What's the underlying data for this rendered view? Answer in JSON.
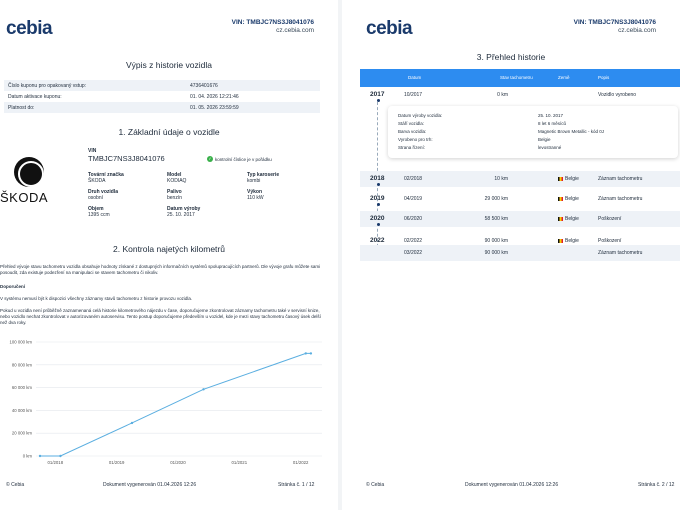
{
  "header": {
    "logo": "cebia",
    "vin_label": "VIN: TMBJC7NS3J8041076",
    "url": "cz.cebia.com"
  },
  "page1": {
    "title": "Výpis z historie vozidla",
    "coupon": [
      {
        "label": "Číslo kuponu pro opakovaný vstup:",
        "value": "4736401676"
      },
      {
        "label": "Datum aktivace kuponu:",
        "value": "01. 04. 2026 12:21:46"
      },
      {
        "label": "Platnost do:",
        "value": "01. 05. 2026 23:59:59"
      }
    ],
    "section1_title": "1. Základní údaje o vozidle",
    "brand_wordmark": "ŠKODA",
    "vin_heading": "VIN",
    "vin_value": "TMBJC7NS3J8041076",
    "vin_check": "kontrolní číslice je v pořádku",
    "vehicle": [
      {
        "label": "Tovární značka",
        "value": "ŠKODA"
      },
      {
        "label": "Model",
        "value": "KODIAQ"
      },
      {
        "label": "Typ karoserie",
        "value": "kombi"
      },
      {
        "label": "Druh vozidla",
        "value": "osobní"
      },
      {
        "label": "Palivo",
        "value": "benzín"
      },
      {
        "label": "Výkon",
        "value": "110 kW"
      },
      {
        "label": "Objem",
        "value": "1395 ccm"
      },
      {
        "label": "Datum výroby",
        "value": "25. 10. 2017"
      }
    ],
    "section2_title": "2. Kontrola najetých kilometrů",
    "intro_text": "Přehled vývoje stavu tachometru vozidla obsahuje hodnoty získané z dostupných informačních systémů spolupracujících partnerů. Dle vývoje grafu můžete sami posoudit, zda existuje podezření na manipulaci se stavem tachometru či nikoliv.",
    "recommendation_heading": "Doporučení",
    "recommendation_1": "V systému nemusí být k dispozici všechny záznamy stavů tachometru z historie provozu vozidla.",
    "recommendation_2": "Pokud u vozidla není průběžně zaznamenaná celá historie kilometrového nájezdu v čase, doporučujeme zkontrolovat záznamy tachometru také v servisní knize, nebo vozidlo nechat zkontrolovat v autorizovaném autoservisu. Tento postup doporučujeme především u vozidel, kde je mezi stavy tachometru časový úsek delší než dva roky."
  },
  "chart_data": {
    "type": "line",
    "title": "",
    "xlabel": "",
    "ylabel": "",
    "x_ticks": [
      "01/2018",
      "01/2019",
      "01/2020",
      "01/2021",
      "01/2022"
    ],
    "y_ticks": [
      "0 km",
      "20 000 km",
      "40 000 km",
      "60 000 km",
      "80 000 km",
      "100 000 km"
    ],
    "ylim": [
      0,
      100000
    ],
    "series": [
      {
        "points": [
          {
            "x": "2017-10",
            "y": 0
          },
          {
            "x": "2018-02",
            "y": 10
          },
          {
            "x": "2019-04",
            "y": 29000
          },
          {
            "x": "2020-06",
            "y": 58500
          },
          {
            "x": "2022-02",
            "y": 90000
          },
          {
            "x": "2022-03",
            "y": 90000
          }
        ]
      }
    ],
    "line_color": "#5aaee0",
    "grid": true
  },
  "page2": {
    "title": "3. Přehled historie",
    "columns": [
      "Datum",
      "Stav tachometru",
      "Země",
      "Popis"
    ],
    "rows": [
      {
        "year": "2017",
        "date": "10/2017",
        "km": "0 km",
        "country": "",
        "desc": "Vozidlo vyrobeno",
        "shaded": false
      },
      {
        "year": "2018",
        "date": "02/2018",
        "km": "10 km",
        "country": "Belgie",
        "desc": "Záznam tachometru",
        "shaded": true
      },
      {
        "year": "2019",
        "date": "04/2019",
        "km": "29 000 km",
        "country": "Belgie",
        "desc": "Záznam tachometru",
        "shaded": false
      },
      {
        "year": "2020",
        "date": "06/2020",
        "km": "58 500 km",
        "country": "Belgie",
        "desc": "Poškození",
        "shaded": true
      },
      {
        "year": "2022",
        "date": "02/2022",
        "km": "90 000 km",
        "country": "Belgie",
        "desc": "Poškození",
        "shaded": false
      },
      {
        "year": "",
        "date": "03/2022",
        "km": "90 000 km",
        "country": "",
        "desc": "Záznam tachometru",
        "shaded": true
      }
    ],
    "detail": [
      {
        "label": "Datum výroby vozidla:",
        "value": "25. 10. 2017"
      },
      {
        "label": "Stáří vozidla:",
        "value": "8 let 6 měsíců"
      },
      {
        "label": "Barva vozidla:",
        "value": "Magnetic Brown Metallic - kód 0J"
      },
      {
        "label": "Vyrobeno pro trh:",
        "value": "Belgie"
      },
      {
        "label": "Strana řízení:",
        "value": "levostranné"
      }
    ]
  },
  "footer": {
    "brand": "© Cebia",
    "generated": "Dokument vygenerován 01.04.2026 12:26",
    "page1": "Stránka č. 1 / 12",
    "page2": "Stránka č. 2 / 12"
  }
}
